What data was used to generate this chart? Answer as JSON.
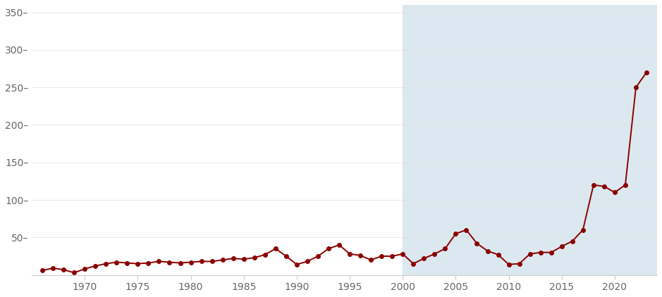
{
  "years": [
    1966,
    1967,
    1968,
    1969,
    1970,
    1971,
    1972,
    1973,
    1974,
    1975,
    1976,
    1977,
    1978,
    1979,
    1980,
    1981,
    1982,
    1983,
    1984,
    1985,
    1986,
    1987,
    1988,
    1989,
    1990,
    1991,
    1992,
    1993,
    1994,
    1995,
    1996,
    1997,
    1998,
    1999,
    2000,
    2001,
    2002,
    2003,
    2004,
    2005,
    2006,
    2007,
    2008,
    2009,
    2010,
    2011,
    2012,
    2013,
    2014,
    2015,
    2016,
    2017,
    2018,
    2019,
    2020,
    2021,
    2022,
    2023
  ],
  "values": [
    6,
    9,
    7,
    3,
    8,
    12,
    15,
    17,
    16,
    15,
    16,
    18,
    17,
    16,
    17,
    18,
    18,
    20,
    22,
    21,
    23,
    27,
    35,
    25,
    14,
    18,
    25,
    35,
    40,
    28,
    26,
    20,
    25,
    25,
    28,
    15,
    22,
    28,
    35,
    55,
    60,
    42,
    32,
    27,
    14,
    15,
    28,
    30,
    30,
    38,
    45,
    60,
    120,
    118,
    110,
    120,
    250,
    270
  ],
  "line_color": "#8b0000",
  "marker_color": "#8b0000",
  "shaded_start": 2000,
  "shade_color": "#dce8ef",
  "ylim": [
    0,
    360
  ],
  "yticks": [
    0,
    50,
    100,
    150,
    200,
    250,
    300,
    350
  ],
  "ytick_labels": [
    "",
    "50–",
    "100–",
    "150–",
    "200–",
    "250–",
    "300–",
    "350–"
  ],
  "xticks": [
    1970,
    1975,
    1980,
    1985,
    1990,
    1995,
    2000,
    2005,
    2010,
    2015,
    2020
  ],
  "bg_color": "#ffffff",
  "spine_color": "#cccccc",
  "tick_color": "#666666",
  "figsize": [
    9.39,
    4.22
  ],
  "dpi": 100
}
